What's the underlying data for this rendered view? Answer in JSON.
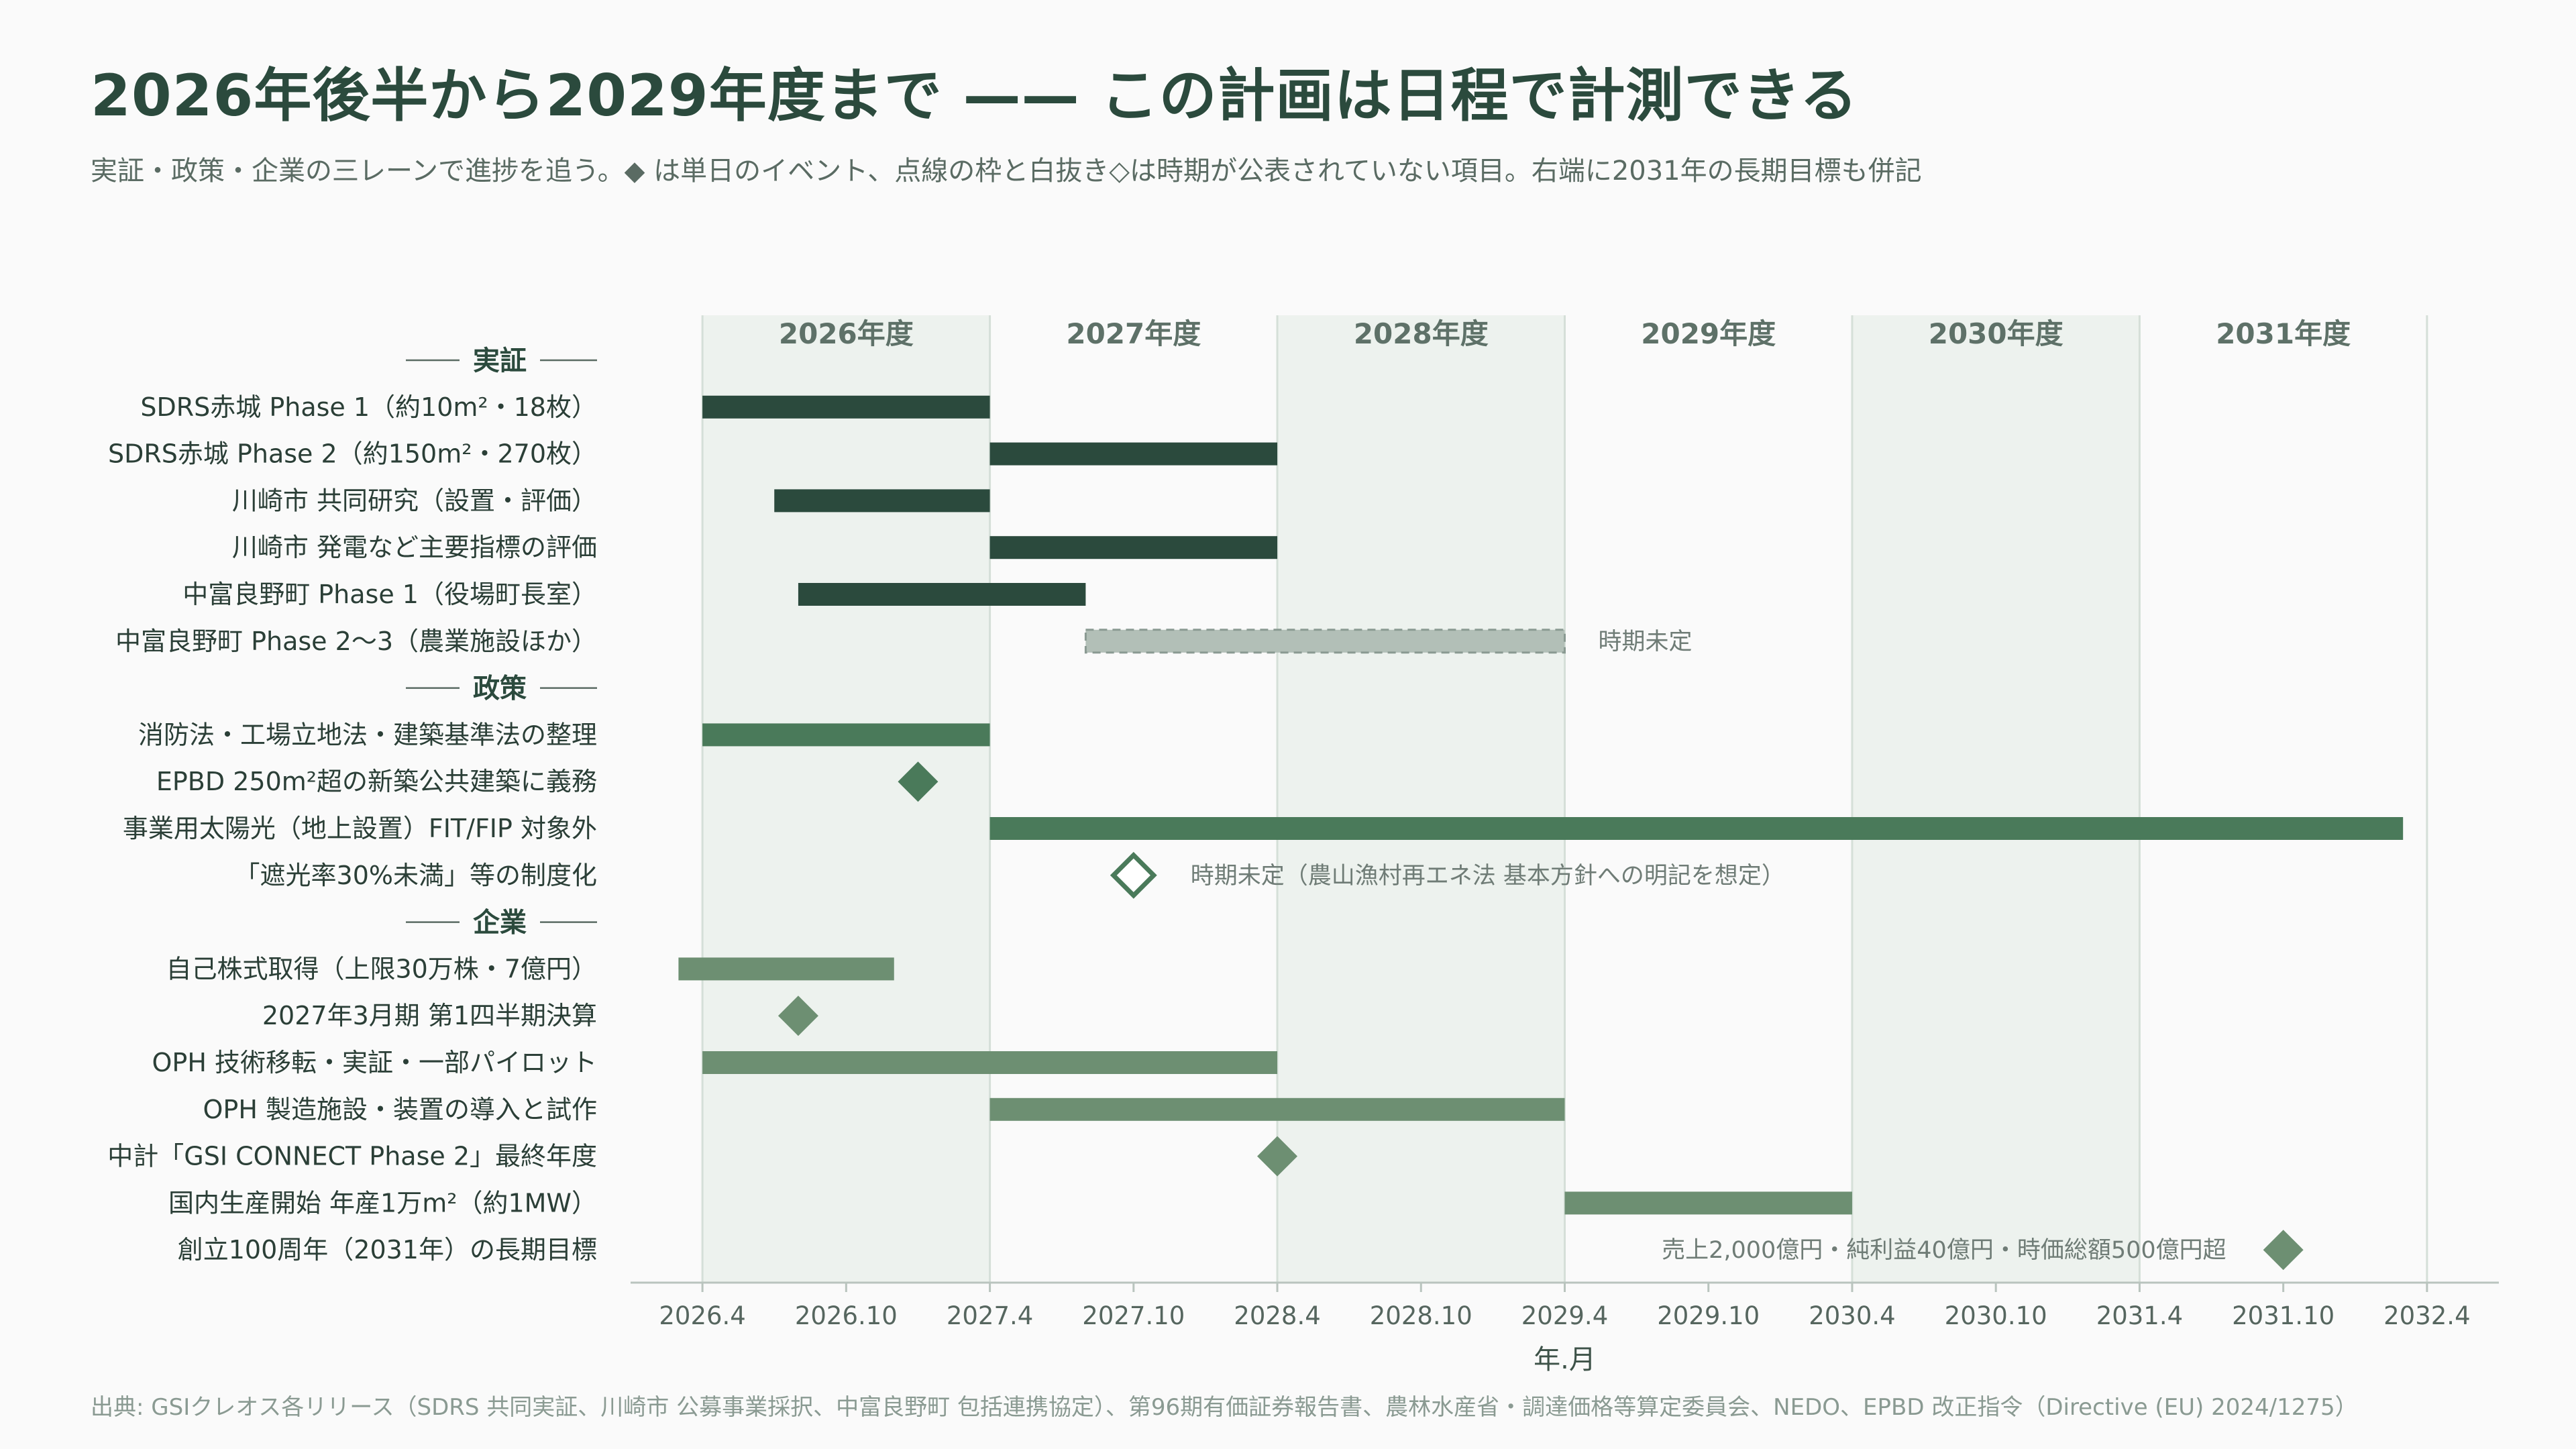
{
  "header": {
    "title": "2026年後半から2029年度まで —— この計画は日程で計測できる",
    "subtitle": "実証・政策・企業の三レーンで進捗を追う。◆ は単日のイベント、点線の枠と白抜き◇は時期が公表されていない項目。右端に2031年の長期目標も併記",
    "source": "出典: GSIクレオス各リリース（SDRS 共同実証、川崎市 公募事業採択、中富良野町 包括連携協定）、第96期有価証券報告書、農林水産省・調達価格等算定委員会、NEDO、EPBD 改正指令（Directive (EU) 2024/1275）"
  },
  "chart_data": {
    "type": "gantt",
    "xlabel": "年.月",
    "xlim": [
      "2026-01",
      "2032-07"
    ],
    "x_ticks": [
      "2026.4",
      "2026.10",
      "2027.4",
      "2027.10",
      "2028.4",
      "2028.10",
      "2029.4",
      "2029.10",
      "2030.4",
      "2030.10",
      "2031.4",
      "2031.10",
      "2032.4"
    ],
    "fiscal_years": [
      {
        "label": "2026年度",
        "start": "2026-04",
        "end": "2027-04",
        "shaded": true
      },
      {
        "label": "2027年度",
        "start": "2027-04",
        "end": "2028-04",
        "shaded": false
      },
      {
        "label": "2028年度",
        "start": "2028-04",
        "end": "2029-04",
        "shaded": true
      },
      {
        "label": "2029年度",
        "start": "2029-04",
        "end": "2030-04",
        "shaded": false
      },
      {
        "label": "2030年度",
        "start": "2030-04",
        "end": "2031-04",
        "shaded": true
      },
      {
        "label": "2031年度",
        "start": "2031-04",
        "end": "2032-04",
        "shaded": false
      }
    ],
    "colors": {
      "実証": "#2b4a3d",
      "政策": "#4a7a5a",
      "企業": "#6d8f72",
      "undetermined": "#b2bfb7",
      "band": "#edf2ee"
    },
    "rows": [
      {
        "kind": "section",
        "label": "実証"
      },
      {
        "kind": "bar",
        "lane": "実証",
        "label": "SDRS赤城 Phase 1（約10m²・18枚）",
        "start": "2026-04",
        "end": "2027-04"
      },
      {
        "kind": "bar",
        "lane": "実証",
        "label": "SDRS赤城 Phase 2（約150m²・270枚）",
        "start": "2027-04",
        "end": "2028-04"
      },
      {
        "kind": "bar",
        "lane": "実証",
        "label": "川崎市 共同研究（設置・評価）",
        "start": "2026-07",
        "end": "2027-04"
      },
      {
        "kind": "bar",
        "lane": "実証",
        "label": "川崎市 発電など主要指標の評価",
        "start": "2027-04",
        "end": "2028-04"
      },
      {
        "kind": "bar",
        "lane": "実証",
        "label": "中富良野町 Phase 1（役場町長室）",
        "start": "2026-08",
        "end": "2027-08"
      },
      {
        "kind": "bar",
        "lane": "実証",
        "label": "中富良野町 Phase 2〜3（農業施設ほか）",
        "start": "2027-08",
        "end": "2029-04",
        "undetermined": true,
        "note": "時期未定"
      },
      {
        "kind": "section",
        "label": "政策"
      },
      {
        "kind": "bar",
        "lane": "政策",
        "label": "消防法・工場立地法・建築基準法の整理",
        "start": "2026-04",
        "end": "2027-04"
      },
      {
        "kind": "event",
        "lane": "政策",
        "label": "EPBD 250m²超の新築公共建築に義務",
        "date": "2027-01"
      },
      {
        "kind": "bar",
        "lane": "政策",
        "label": "事業用太陽光（地上設置）FIT/FIP 対象外",
        "start": "2027-04",
        "end": "2032-03"
      },
      {
        "kind": "event",
        "lane": "政策",
        "label": "「遮光率30%未満」等の制度化",
        "date": "2027-10",
        "undetermined": true,
        "note": "時期未定（農山漁村再エネ法 基本方針への明記を想定）"
      },
      {
        "kind": "section",
        "label": "企業"
      },
      {
        "kind": "bar",
        "lane": "企業",
        "label": "自己株式取得（上限30万株・7億円）",
        "start": "2026-03",
        "end": "2026-12"
      },
      {
        "kind": "event",
        "lane": "企業",
        "label": "2027年3月期 第1四半期決算",
        "date": "2026-08"
      },
      {
        "kind": "bar",
        "lane": "企業",
        "label": "OPH 技術移転・実証・一部パイロット",
        "start": "2026-04",
        "end": "2028-04"
      },
      {
        "kind": "bar",
        "lane": "企業",
        "label": "OPH 製造施設・装置の導入と試作",
        "start": "2027-04",
        "end": "2029-04"
      },
      {
        "kind": "event",
        "lane": "企業",
        "label": "中計「GSI CONNECT Phase 2」最終年度",
        "date": "2028-04"
      },
      {
        "kind": "bar",
        "lane": "企業",
        "label": "国内生産開始 年産1万m²（約1MW）",
        "start": "2029-04",
        "end": "2030-04"
      },
      {
        "kind": "event",
        "lane": "企業",
        "label": "創立100周年（2031年）の長期目標",
        "date": "2031-10",
        "note": "売上2,000億円・純利益40億円・時価総額500億円超"
      }
    ]
  }
}
